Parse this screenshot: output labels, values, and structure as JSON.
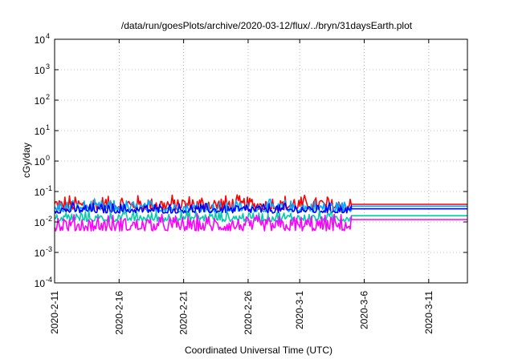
{
  "chart_data": {
    "type": "line",
    "title": "/data/run/goesPlots/archive/2020-03-12/flux/../bryn/31daysEarth.plot",
    "xlabel": "Coordinated Universal Time (UTC)",
    "ylabel": "cGy/day",
    "yscale": "log",
    "ylim": [
      0.0001,
      10000
    ],
    "x_ticks": [
      "2020-2-11",
      "2020-2-16",
      "2020-2-21",
      "2020-2-26",
      "2020-3-1",
      "2020-3-6",
      "2020-3-11"
    ],
    "y_ticks": [
      {
        "base": "10",
        "exp": "4",
        "value": 10000
      },
      {
        "base": "10",
        "exp": "3",
        "value": 1000
      },
      {
        "base": "10",
        "exp": "2",
        "value": 100
      },
      {
        "base": "10",
        "exp": "1",
        "value": 10
      },
      {
        "base": "10",
        "exp": "0",
        "value": 1
      },
      {
        "base": "10",
        "exp": "-1",
        "value": 0.1
      },
      {
        "base": "10",
        "exp": "-2",
        "value": 0.01
      },
      {
        "base": "10",
        "exp": "-3",
        "value": 0.001
      },
      {
        "base": "10",
        "exp": "-4",
        "value": 0.0001
      }
    ],
    "x_range_days": [
      "2020-2-11",
      "2020-3-14"
    ],
    "data_end": "2020-3-5",
    "grid": true,
    "series": [
      {
        "color": "#ff0000",
        "noisy_range": [
          0.02,
          0.09
        ],
        "flat_after": 0.038
      },
      {
        "color": "#00aaff",
        "noisy_range": [
          0.018,
          0.06
        ],
        "flat_after": 0.033
      },
      {
        "color": "#0000ff",
        "noisy_range": [
          0.017,
          0.045
        ],
        "flat_after": 0.027
      },
      {
        "color": "#00ccaa",
        "noisy_range": [
          0.009,
          0.025
        ],
        "flat_after": 0.016
      },
      {
        "color": "#ff00ff",
        "noisy_range": [
          0.004,
          0.02
        ],
        "flat_after": 0.012
      }
    ]
  }
}
